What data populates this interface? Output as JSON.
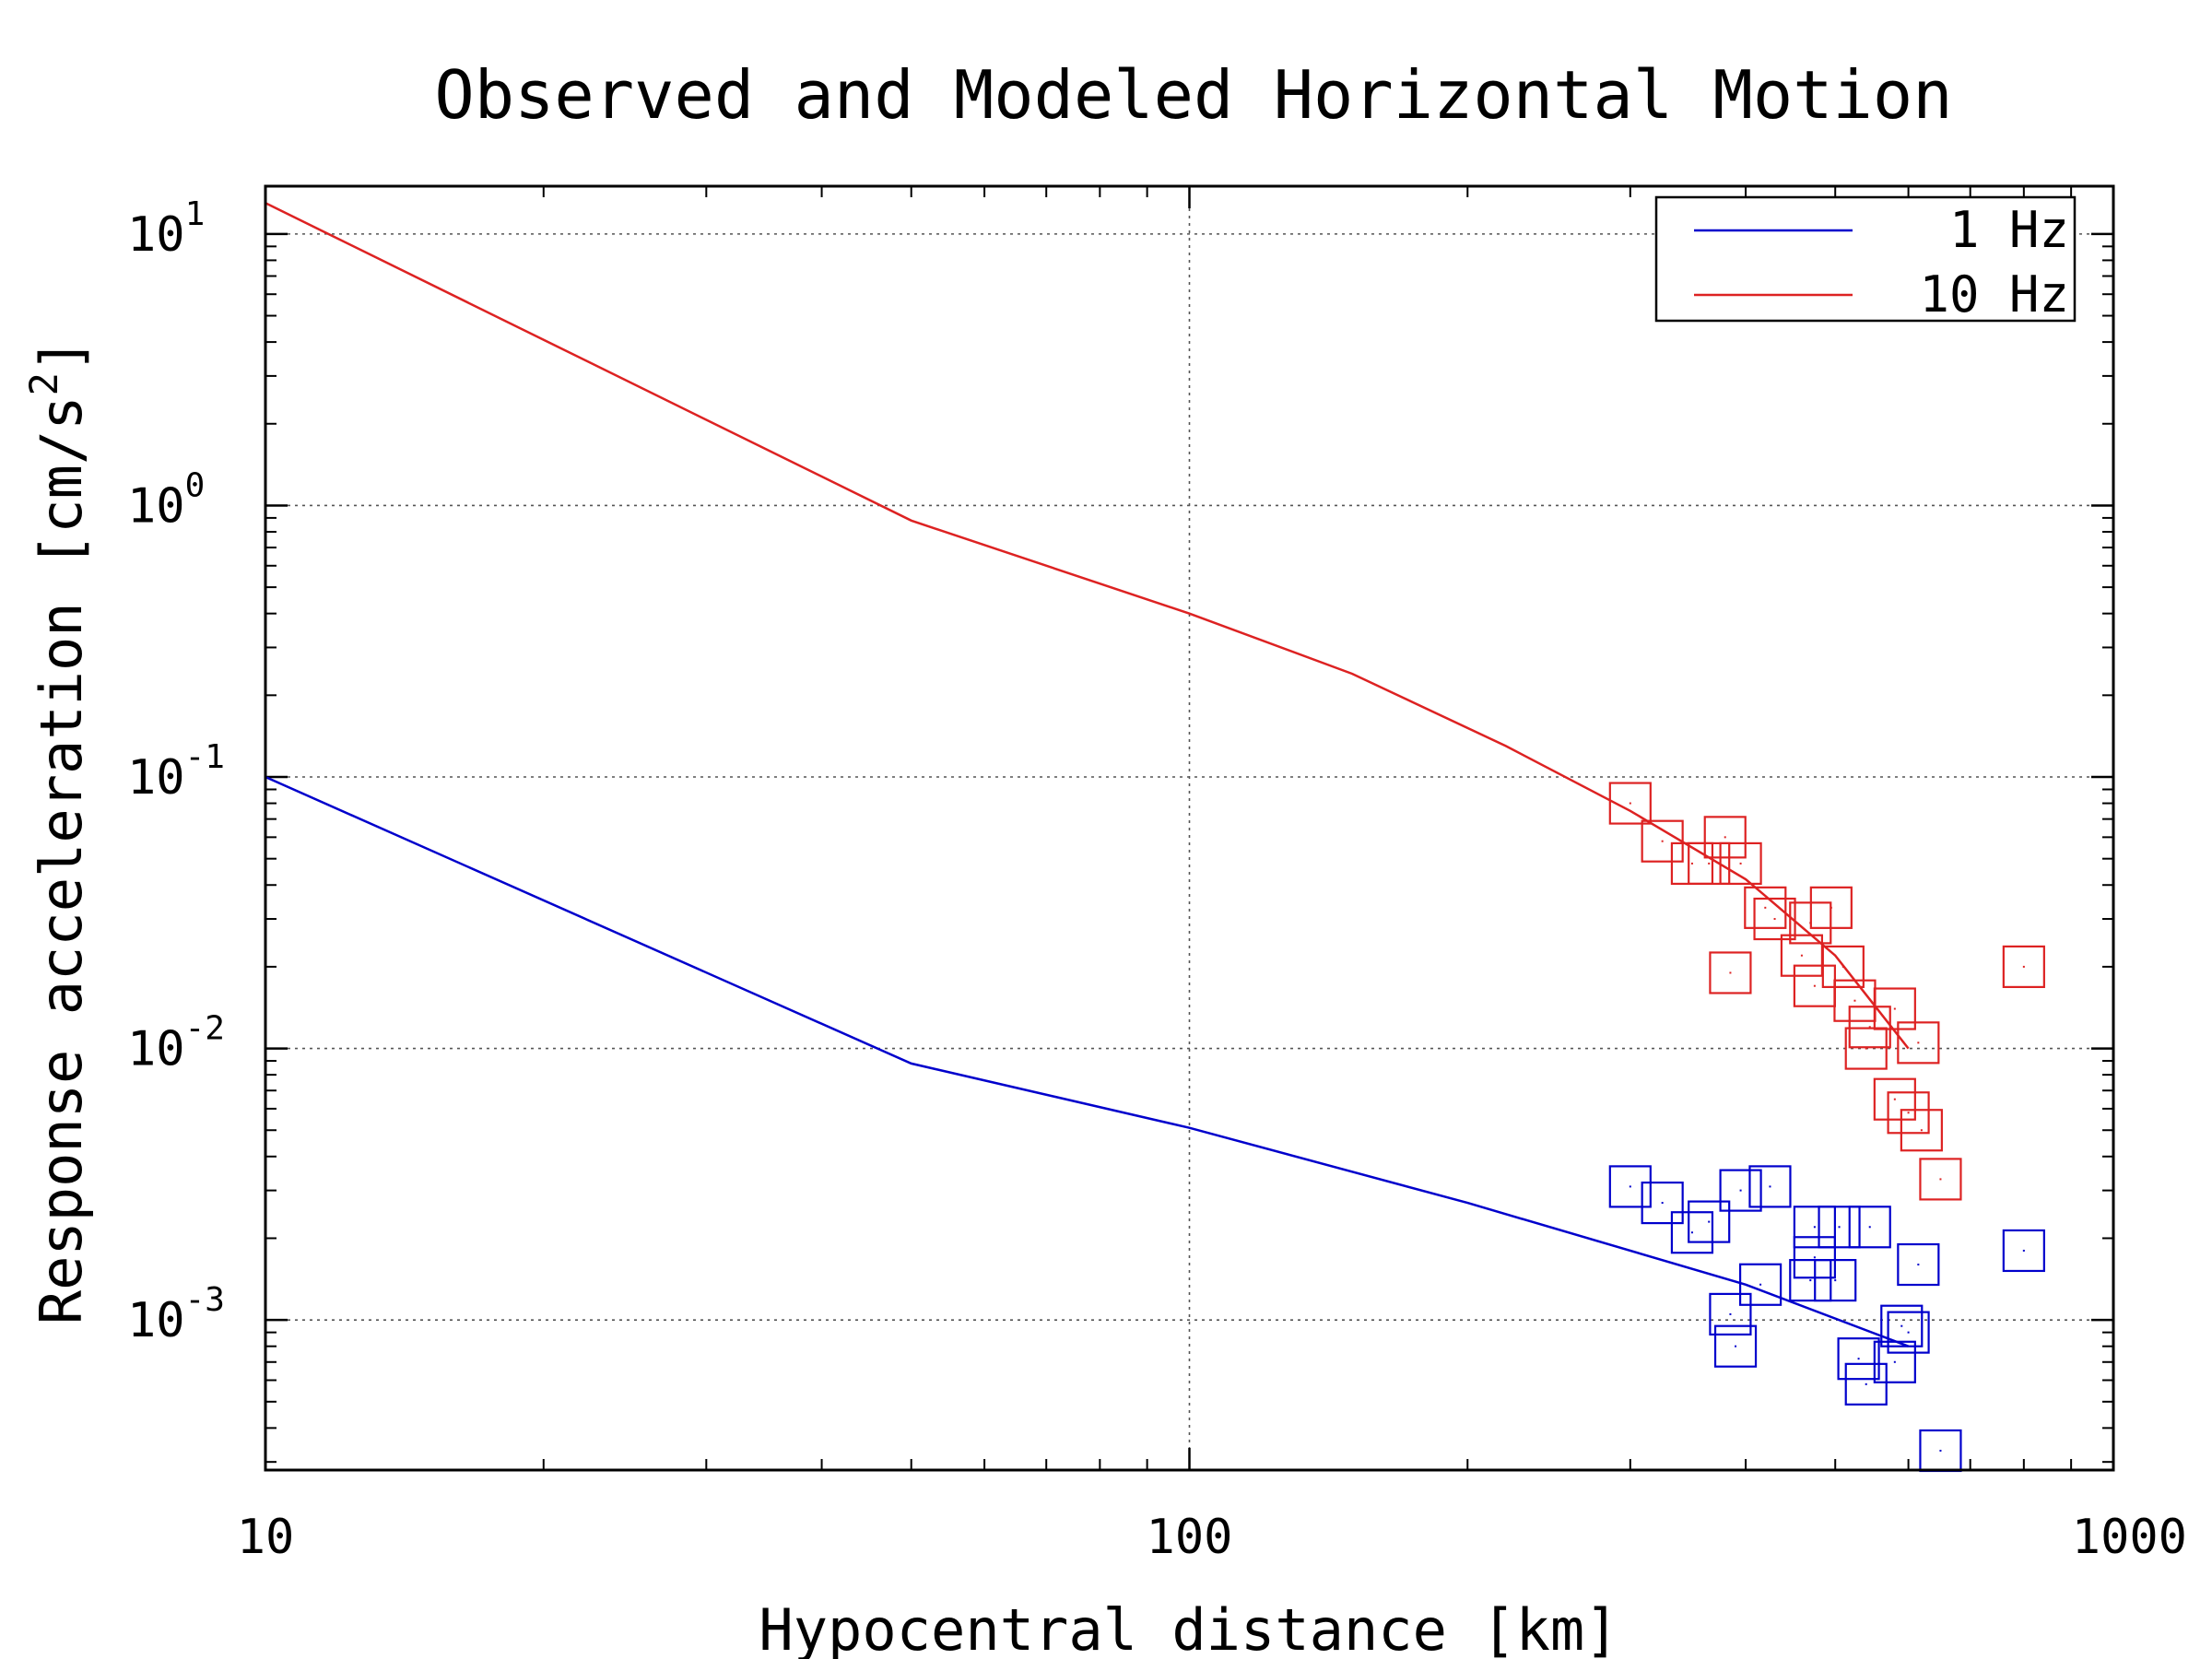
{
  "chart_data": {
    "type": "scatter",
    "title": "Observed and Modeled Horizontal Motion",
    "xlabel": "Hypocentral distance [km]",
    "ylabel": "Response acceleration [cm/s",
    "ylabel_sup": "2",
    "ylabel_end": "]",
    "x_scale": "log",
    "y_scale": "log",
    "xlim": [
      10,
      1000
    ],
    "ylim": [
      0.00028,
      15
    ],
    "x_ticks": [
      {
        "value": 10,
        "label": "10"
      },
      {
        "value": 100,
        "label": "100"
      },
      {
        "value": 1000,
        "label": "1000"
      }
    ],
    "y_ticks": [
      {
        "value": 10,
        "base": "10",
        "exp": "1"
      },
      {
        "value": 1,
        "base": "10",
        "exp": "0"
      },
      {
        "value": 0.1,
        "base": "10",
        "exp": "-1"
      },
      {
        "value": 0.01,
        "base": "10",
        "exp": "-2"
      },
      {
        "value": 0.001,
        "base": "10",
        "exp": "-3"
      }
    ],
    "grid": true,
    "legend_position": "top-right",
    "series": [
      {
        "name": "1 Hz",
        "color": "#0000cc",
        "line": [
          [
            10,
            0.1
          ],
          [
            50,
            0.0088
          ],
          [
            100,
            0.0051
          ],
          [
            200,
            0.0027
          ],
          [
            400,
            0.00135
          ],
          [
            600,
            0.0008
          ]
        ],
        "points": [
          [
            300,
            0.0031
          ],
          [
            325,
            0.0027
          ],
          [
            350,
            0.0021
          ],
          [
            365,
            0.0023
          ],
          [
            385,
            0.00105
          ],
          [
            390,
            0.0008
          ],
          [
            395,
            0.003
          ],
          [
            415,
            0.00135
          ],
          [
            425,
            0.0031
          ],
          [
            475,
            0.0022
          ],
          [
            475,
            0.0017
          ],
          [
            470,
            0.0014
          ],
          [
            500,
            0.0014
          ],
          [
            505,
            0.0022
          ],
          [
            530,
            0.00072
          ],
          [
            540,
            0.00058
          ],
          [
            545,
            0.0022
          ],
          [
            580,
            0.0007
          ],
          [
            590,
            0.00095
          ],
          [
            600,
            0.0009
          ],
          [
            615,
            0.0016
          ],
          [
            650,
            0.00033
          ],
          [
            800,
            0.0018
          ]
        ]
      },
      {
        "name": "10 Hz",
        "color": "#dd2222",
        "line": [
          [
            10,
            13
          ],
          [
            50,
            0.88
          ],
          [
            100,
            0.4
          ],
          [
            150,
            0.24
          ],
          [
            220,
            0.13
          ],
          [
            300,
            0.075
          ],
          [
            400,
            0.042
          ],
          [
            500,
            0.022
          ],
          [
            600,
            0.01
          ]
        ],
        "points": [
          [
            300,
            0.08
          ],
          [
            325,
            0.058
          ],
          [
            350,
            0.048
          ],
          [
            365,
            0.048
          ],
          [
            380,
            0.06
          ],
          [
            385,
            0.019
          ],
          [
            395,
            0.048
          ],
          [
            420,
            0.033
          ],
          [
            430,
            0.03
          ],
          [
            460,
            0.022
          ],
          [
            475,
            0.017
          ],
          [
            470,
            0.029
          ],
          [
            495,
            0.033
          ],
          [
            510,
            0.02
          ],
          [
            525,
            0.015
          ],
          [
            540,
            0.01
          ],
          [
            545,
            0.012
          ],
          [
            580,
            0.014
          ],
          [
            580,
            0.0065
          ],
          [
            600,
            0.0058
          ],
          [
            615,
            0.0105
          ],
          [
            620,
            0.005
          ],
          [
            650,
            0.0033
          ],
          [
            800,
            0.02
          ]
        ]
      }
    ]
  }
}
